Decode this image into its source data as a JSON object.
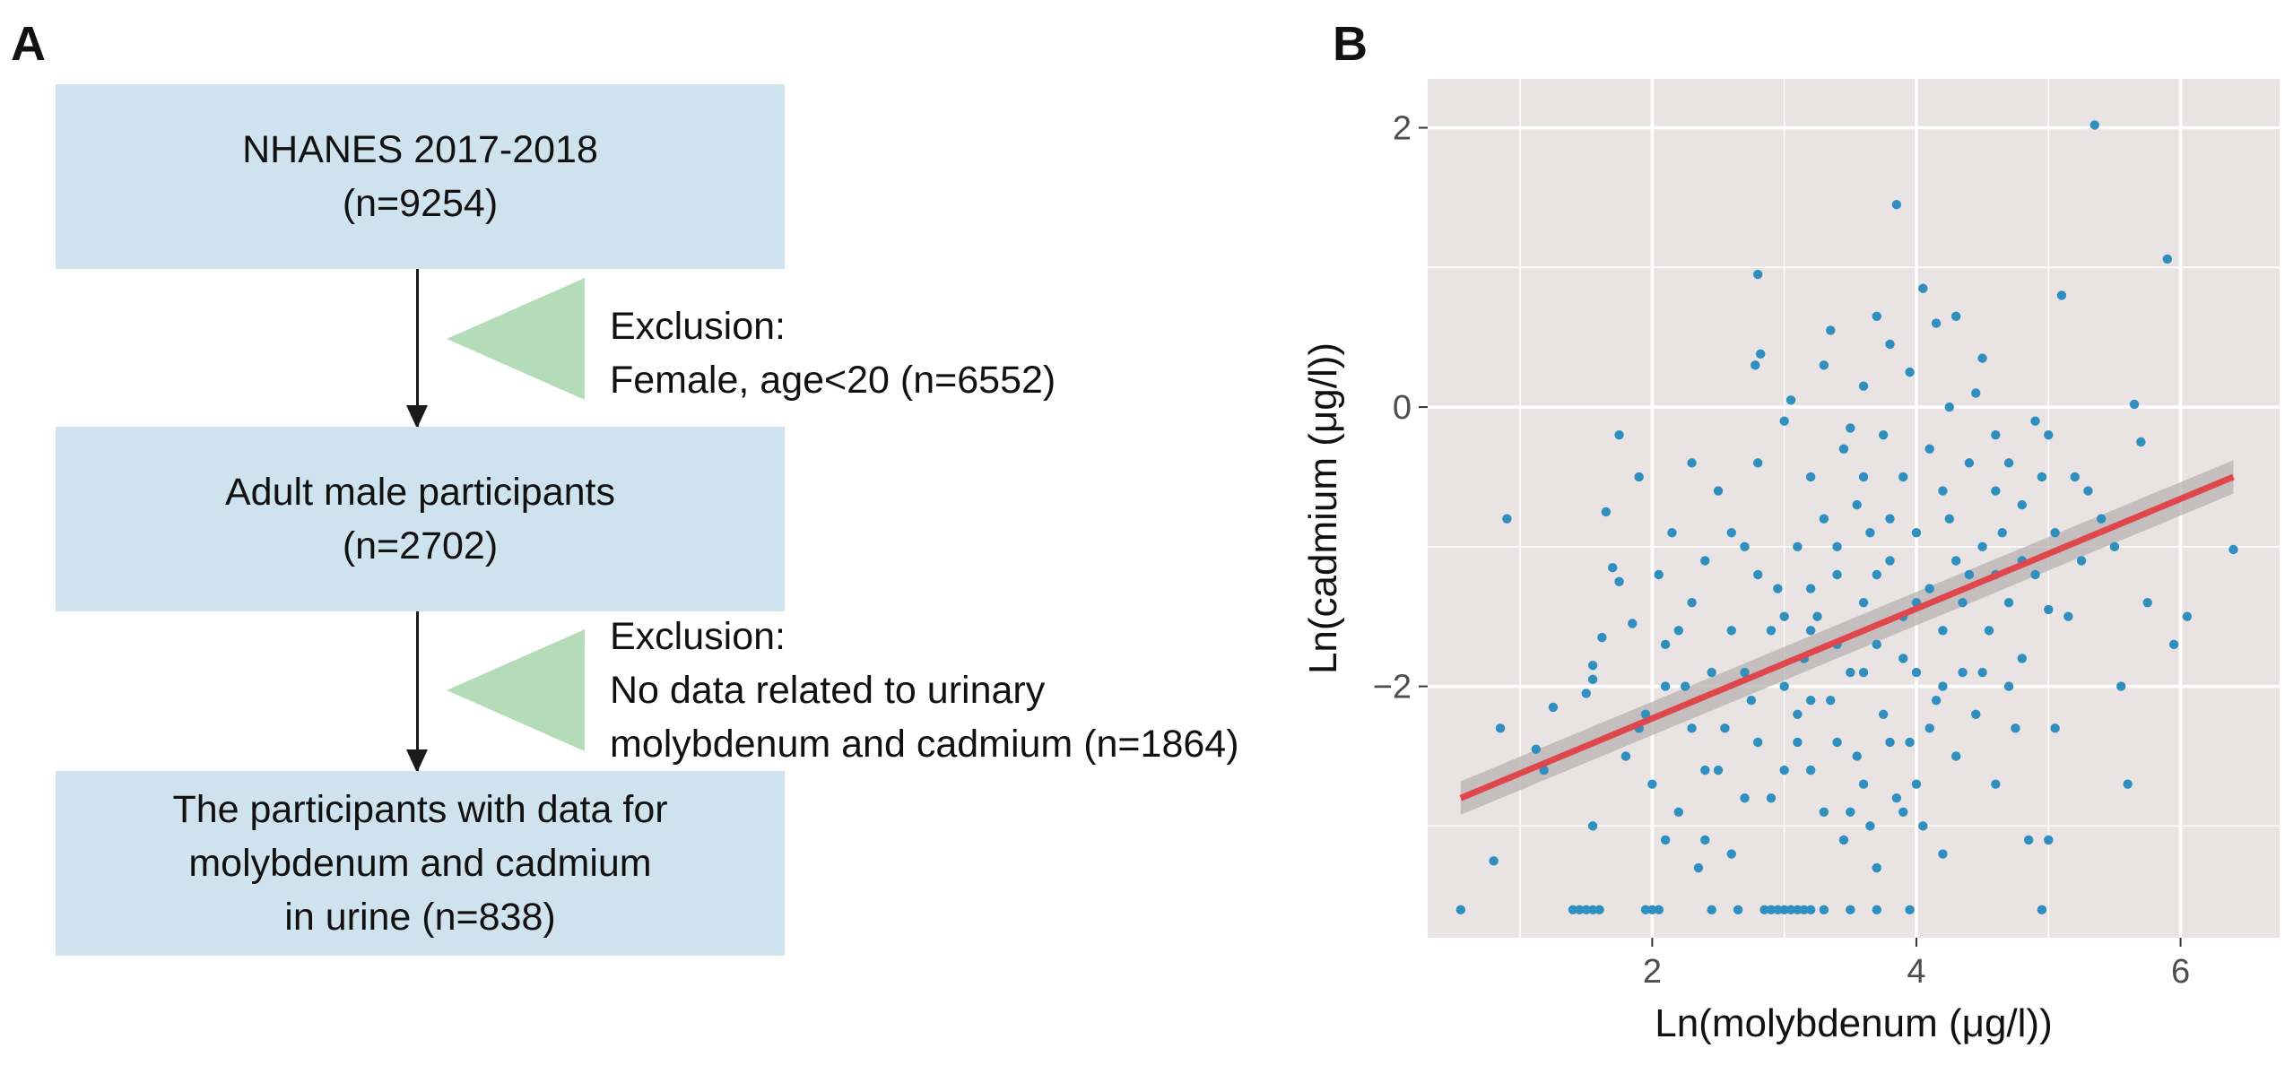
{
  "panel_a": {
    "letter": "A",
    "box1": {
      "line1": "NHANES 2017-2018",
      "line2": "(n=9254)"
    },
    "excl1": {
      "line1": "Exclusion:",
      "line2": "Female, age<20 (n=6552)"
    },
    "box2": {
      "line1": "Adult male participants",
      "line2": "(n=2702)"
    },
    "excl2": {
      "line1": "Exclusion:",
      "line2": "No data related to urinary",
      "line3": "molybdenum and cadmium (n=1864)"
    },
    "box3": {
      "line1": "The participants with data for",
      "line2": "molybdenum and cadmium",
      "line3": "in urine (n=838)"
    }
  },
  "panel_b": {
    "letter": "B"
  },
  "colors": {
    "box_fill": "#cfe3ef",
    "wedge_fill": "#b5dcb8",
    "plot_bg": "#e9e3e3",
    "grid": "#ffffff",
    "points": "#2f8fbf",
    "fit_line": "#e0474c",
    "ci_band": "#b8b2b2"
  },
  "chart_data": {
    "type": "scatter",
    "xlabel": "Ln(molybdenum (μg/l))",
    "ylabel": "Ln(cadmium (μg/l))",
    "xlim": [
      0.3,
      6.75
    ],
    "ylim": [
      -3.8,
      2.35
    ],
    "x_ticks": [
      2,
      4,
      6
    ],
    "x_tick_labels": [
      "2",
      "4",
      "6"
    ],
    "y_ticks": [
      2,
      0,
      -2
    ],
    "y_tick_labels": [
      "2",
      "0",
      "−2"
    ],
    "grid": true,
    "legend": "none",
    "fit_line": {
      "x": [
        0.55,
        6.4
      ],
      "y": [
        -2.8,
        -0.5
      ]
    },
    "points": [
      [
        0.55,
        -3.6
      ],
      [
        0.8,
        -3.25
      ],
      [
        0.9,
        -0.8
      ],
      [
        0.85,
        -2.3
      ],
      [
        1.12,
        -2.45
      ],
      [
        1.18,
        -2.6
      ],
      [
        1.25,
        -2.15
      ],
      [
        1.4,
        -3.6
      ],
      [
        1.45,
        -3.6
      ],
      [
        1.5,
        -3.6
      ],
      [
        1.55,
        -3.6
      ],
      [
        1.6,
        -3.6
      ],
      [
        1.55,
        -3.0
      ],
      [
        1.55,
        -1.85
      ],
      [
        1.55,
        -1.95
      ],
      [
        1.5,
        -2.05
      ],
      [
        1.62,
        -1.65
      ],
      [
        1.7,
        -1.15
      ],
      [
        1.75,
        -0.2
      ],
      [
        1.75,
        -1.25
      ],
      [
        1.65,
        -0.75
      ],
      [
        1.8,
        -2.5
      ],
      [
        1.85,
        -1.55
      ],
      [
        1.9,
        -0.5
      ],
      [
        1.95,
        -3.6
      ],
      [
        2.0,
        -3.6
      ],
      [
        2.05,
        -3.6
      ],
      [
        1.95,
        -2.2
      ],
      [
        2.0,
        -2.7
      ],
      [
        2.05,
        -1.2
      ],
      [
        2.1,
        -1.7
      ],
      [
        2.15,
        -0.9
      ],
      [
        2.2,
        -2.9
      ],
      [
        2.25,
        -2.0
      ],
      [
        2.3,
        -1.4
      ],
      [
        2.3,
        -0.4
      ],
      [
        2.35,
        -3.3
      ],
      [
        2.4,
        -2.6
      ],
      [
        2.45,
        -3.6
      ],
      [
        2.45,
        -1.9
      ],
      [
        2.5,
        -0.6
      ],
      [
        2.55,
        -2.3
      ],
      [
        2.6,
        -1.6
      ],
      [
        2.6,
        -3.2
      ],
      [
        2.65,
        -3.6
      ],
      [
        2.7,
        -1.0
      ],
      [
        2.75,
        -2.1
      ],
      [
        2.8,
        -0.4
      ],
      [
        2.78,
        0.3
      ],
      [
        2.82,
        0.38
      ],
      [
        2.8,
        0.95
      ],
      [
        2.85,
        -3.6
      ],
      [
        2.9,
        -3.6
      ],
      [
        2.95,
        -3.6
      ],
      [
        3.0,
        -3.6
      ],
      [
        3.05,
        -3.6
      ],
      [
        3.1,
        -3.6
      ],
      [
        3.15,
        -3.6
      ],
      [
        3.2,
        -3.6
      ],
      [
        3.3,
        -3.6
      ],
      [
        3.5,
        -3.6
      ],
      [
        3.7,
        -3.6
      ],
      [
        3.95,
        -3.6
      ],
      [
        2.9,
        -2.8
      ],
      [
        2.95,
        -1.3
      ],
      [
        3.0,
        -0.1
      ],
      [
        3.05,
        0.05
      ],
      [
        3.1,
        -2.4
      ],
      [
        3.1,
        -1.0
      ],
      [
        3.15,
        -1.8
      ],
      [
        3.2,
        -2.6
      ],
      [
        3.2,
        -0.5
      ],
      [
        3.25,
        -1.5
      ],
      [
        3.3,
        -2.9
      ],
      [
        3.3,
        -0.8
      ],
      [
        3.35,
        0.55
      ],
      [
        3.35,
        -2.1
      ],
      [
        3.4,
        -1.2
      ],
      [
        3.45,
        -3.1
      ],
      [
        3.45,
        -0.3
      ],
      [
        3.5,
        -1.9
      ],
      [
        3.55,
        -0.7
      ],
      [
        3.55,
        -2.5
      ],
      [
        3.6,
        0.15
      ],
      [
        3.6,
        -1.4
      ],
      [
        3.65,
        -3.0
      ],
      [
        3.65,
        -0.9
      ],
      [
        3.7,
        0.65
      ],
      [
        3.7,
        -1.7
      ],
      [
        3.75,
        -2.2
      ],
      [
        3.75,
        -0.2
      ],
      [
        3.8,
        -1.1
      ],
      [
        3.8,
        0.45
      ],
      [
        3.85,
        -2.8
      ],
      [
        3.85,
        1.45
      ],
      [
        3.9,
        -1.5
      ],
      [
        3.9,
        -0.5
      ],
      [
        3.95,
        0.25
      ],
      [
        3.95,
        -2.4
      ],
      [
        4.0,
        -1.9
      ],
      [
        4.0,
        -0.9
      ],
      [
        4.05,
        0.85
      ],
      [
        4.05,
        -3.0
      ],
      [
        4.1,
        -1.3
      ],
      [
        4.1,
        -0.3
      ],
      [
        4.15,
        -2.1
      ],
      [
        4.15,
        0.6
      ],
      [
        4.2,
        -1.6
      ],
      [
        4.2,
        -3.2
      ],
      [
        4.25,
        0.0
      ],
      [
        4.25,
        -0.8
      ],
      [
        4.3,
        -2.5
      ],
      [
        4.3,
        0.65
      ],
      [
        4.35,
        -1.4
      ],
      [
        4.35,
        -1.9
      ],
      [
        4.4,
        -0.4
      ],
      [
        4.45,
        0.1
      ],
      [
        4.45,
        -2.2
      ],
      [
        4.5,
        -1.0
      ],
      [
        4.5,
        0.35
      ],
      [
        4.55,
        -1.6
      ],
      [
        4.6,
        -0.2
      ],
      [
        4.6,
        -2.7
      ],
      [
        4.65,
        -0.9
      ],
      [
        4.7,
        -1.4
      ],
      [
        4.7,
        -0.4
      ],
      [
        4.75,
        -2.3
      ],
      [
        4.8,
        -0.7
      ],
      [
        4.8,
        -1.8
      ],
      [
        4.85,
        -3.1
      ],
      [
        4.9,
        -1.2
      ],
      [
        4.9,
        -0.1
      ],
      [
        4.95,
        -3.6
      ],
      [
        4.95,
        -0.5
      ],
      [
        5.0,
        -3.1
      ],
      [
        5.0,
        -1.45
      ],
      [
        5.05,
        -2.3
      ],
      [
        5.05,
        -0.9
      ],
      [
        5.1,
        0.8
      ],
      [
        5.15,
        -1.5
      ],
      [
        5.2,
        -0.5
      ],
      [
        5.25,
        -1.1
      ],
      [
        5.3,
        -0.6
      ],
      [
        5.35,
        2.02
      ],
      [
        5.4,
        -0.8
      ],
      [
        5.5,
        -1.0
      ],
      [
        5.55,
        -2.0
      ],
      [
        5.6,
        -2.7
      ],
      [
        5.65,
        0.02
      ],
      [
        5.7,
        -0.25
      ],
      [
        5.75,
        -1.4
      ],
      [
        5.9,
        1.06
      ],
      [
        5.95,
        -1.7
      ],
      [
        6.05,
        -1.5
      ],
      [
        6.4,
        -1.02
      ],
      [
        2.1,
        -3.1
      ],
      [
        2.4,
        -3.1
      ],
      [
        2.7,
        -2.8
      ],
      [
        3.0,
        -2.0
      ],
      [
        3.2,
        -1.3
      ],
      [
        3.4,
        -1.0
      ],
      [
        3.6,
        -2.7
      ],
      [
        3.8,
        -2.4
      ],
      [
        4.0,
        -2.7
      ],
      [
        4.2,
        -0.6
      ],
      [
        4.4,
        -1.2
      ],
      [
        4.6,
        -1.2
      ],
      [
        3.3,
        0.3
      ],
      [
        3.5,
        -0.15
      ],
      [
        3.1,
        -2.2
      ],
      [
        2.9,
        -1.6
      ],
      [
        2.7,
        -1.9
      ],
      [
        2.5,
        -2.6
      ],
      [
        2.3,
        -2.3
      ],
      [
        2.1,
        -2.0
      ],
      [
        1.9,
        -2.3
      ],
      [
        3.7,
        -1.2
      ],
      [
        3.9,
        -1.8
      ],
      [
        4.1,
        -2.3
      ],
      [
        4.3,
        -1.1
      ],
      [
        4.5,
        -1.9
      ],
      [
        4.7,
        -2.0
      ],
      [
        3.6,
        -0.5
      ],
      [
        3.4,
        -1.7
      ],
      [
        3.2,
        -2.1
      ],
      [
        3.0,
        -1.5
      ],
      [
        2.8,
        -1.2
      ],
      [
        2.6,
        -0.9
      ],
      [
        2.4,
        -1.1
      ],
      [
        2.2,
        -1.6
      ],
      [
        4.2,
        -2.0
      ],
      [
        4.0,
        -1.4
      ],
      [
        3.8,
        -0.8
      ],
      [
        3.6,
        -1.9
      ],
      [
        3.4,
        -2.4
      ],
      [
        3.2,
        -1.6
      ],
      [
        3.0,
        -2.6
      ],
      [
        2.8,
        -2.4
      ],
      [
        4.6,
        -0.6
      ],
      [
        4.8,
        -1.1
      ],
      [
        5.0,
        -0.2
      ],
      [
        3.5,
        -2.9
      ],
      [
        3.7,
        -3.3
      ],
      [
        3.9,
        -2.9
      ]
    ]
  }
}
